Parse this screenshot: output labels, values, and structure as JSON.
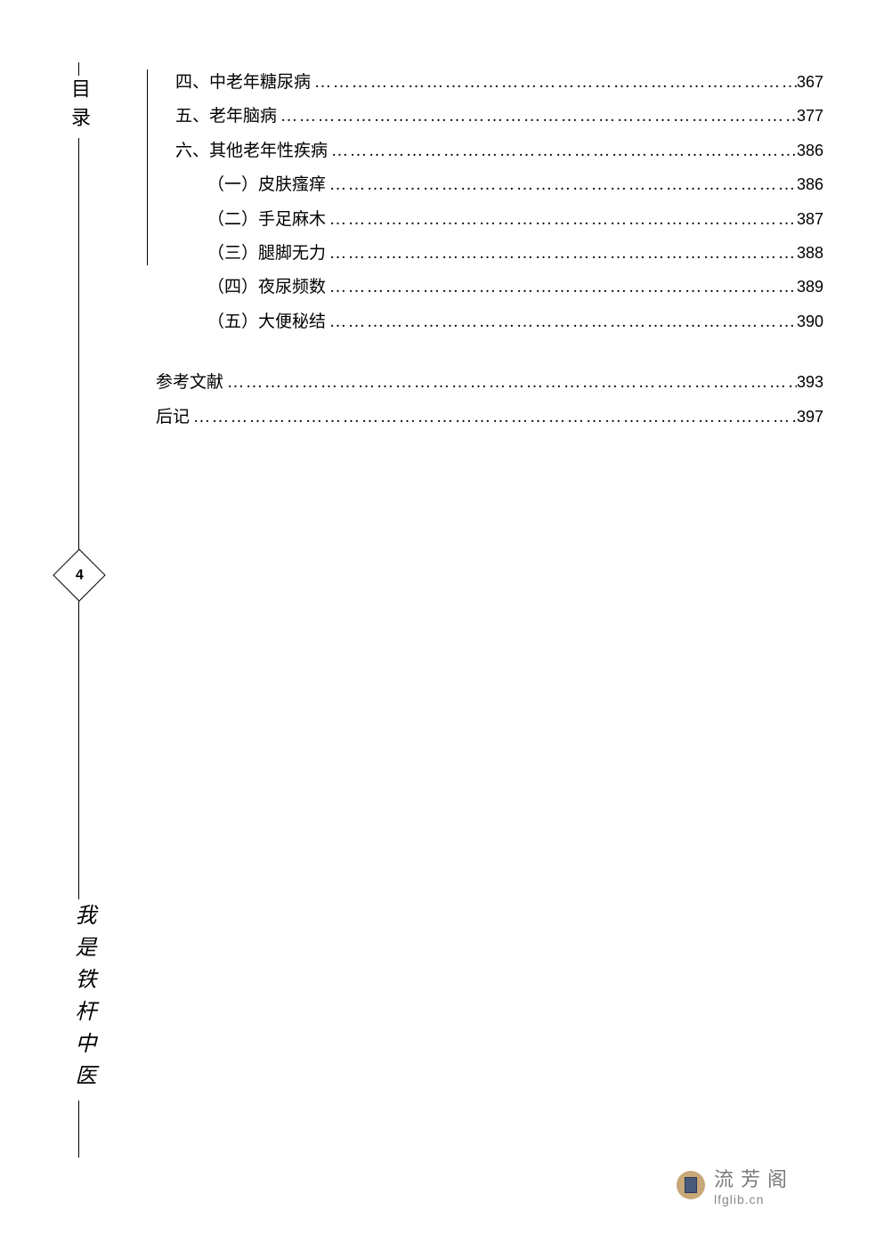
{
  "sidebar": {
    "top_label": "目录",
    "bottom_label": "我是铁杆中医"
  },
  "page_number": "4",
  "toc": {
    "entries": [
      {
        "level": "level1",
        "label": "四、中老年糖尿病",
        "page": "367"
      },
      {
        "level": "level1",
        "label": "五、老年脑病",
        "page": "377"
      },
      {
        "level": "level1",
        "label": "六、其他老年性疾病",
        "page": "386"
      },
      {
        "level": "level2",
        "label": "（一）皮肤瘙痒",
        "page": "386"
      },
      {
        "level": "level2",
        "label": "（二）手足麻木",
        "page": "387"
      },
      {
        "level": "level2",
        "label": "（三）腿脚无力",
        "page": "388"
      },
      {
        "level": "level2",
        "label": "（四）夜尿频数",
        "page": "389"
      },
      {
        "level": "level2",
        "label": "（五）大便秘结",
        "page": "390"
      }
    ],
    "sections": [
      {
        "label": "参考文献",
        "page": "393"
      },
      {
        "label": "后记",
        "page": "397"
      }
    ]
  },
  "watermark": {
    "title": "流芳阁",
    "url": "lfglib.cn"
  },
  "colors": {
    "background": "#ffffff",
    "text": "#000000",
    "line": "#000000",
    "watermark_icon_bg": "#c8a878",
    "watermark_book": "#4a5a7a",
    "watermark_text": "#7a7a7a"
  },
  "typography": {
    "body_font": "SimSun",
    "sidebar_font": "KaiTi",
    "toc_fontsize": 19,
    "sidebar_top_fontsize": 22,
    "sidebar_bottom_fontsize": 24,
    "pagenum_fontsize": 18
  }
}
